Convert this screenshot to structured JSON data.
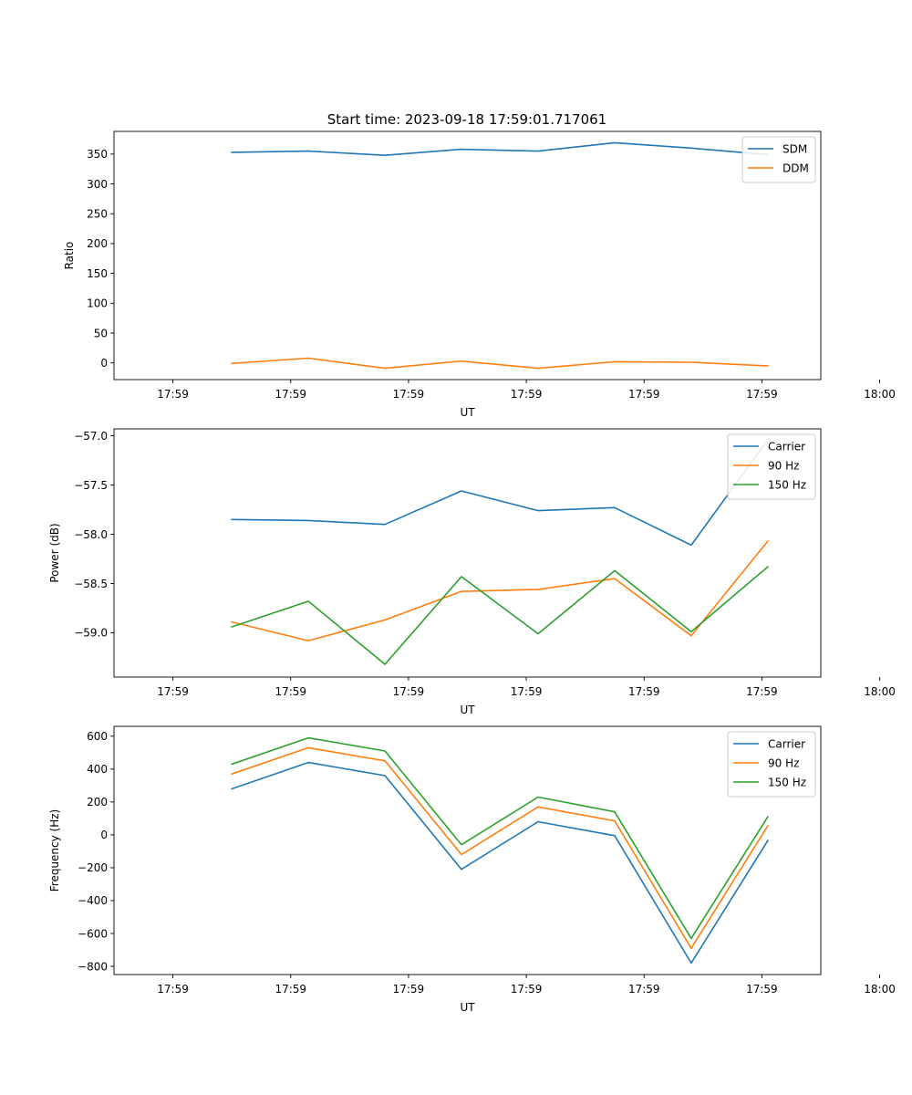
{
  "title": "Start time: 2023-09-18 17:59:01.717061",
  "colors": {
    "blue": "#1f77b4",
    "orange": "#ff7f0e",
    "green": "#2ca02c"
  },
  "chart_data": [
    {
      "type": "line",
      "xlabel": "UT",
      "ylabel": "Ratio",
      "x": [
        0.5,
        1.15,
        1.8,
        2.45,
        3.1,
        3.75,
        4.4,
        5.05
      ],
      "xlim": [
        -0.5,
        5.5
      ],
      "x_ticks": [
        0,
        1,
        2,
        3,
        4,
        5,
        6
      ],
      "x_tick_labels": [
        "17:59",
        "17:59",
        "17:59",
        "17:59",
        "17:59",
        "17:59",
        "18:00"
      ],
      "ylim": [
        -28,
        388
      ],
      "y_ticks": [
        0,
        50,
        100,
        150,
        200,
        250,
        300,
        350
      ],
      "y_tick_labels": [
        "0",
        "50",
        "100",
        "150",
        "200",
        "250",
        "300",
        "350"
      ],
      "legend_position": "top-right",
      "series": [
        {
          "name": "SDM",
          "color": "#1f77b4",
          "values": [
            353,
            355,
            348,
            358,
            355,
            369,
            360,
            349
          ]
        },
        {
          "name": "DDM",
          "color": "#ff7f0e",
          "values": [
            -1,
            8,
            -9,
            3,
            -9,
            2,
            1,
            -5
          ]
        }
      ]
    },
    {
      "type": "line",
      "xlabel": "UT",
      "ylabel": "Power (dB)",
      "x": [
        0.5,
        1.15,
        1.8,
        2.45,
        3.1,
        3.75,
        4.4,
        5.05
      ],
      "xlim": [
        -0.5,
        5.5
      ],
      "x_ticks": [
        0,
        1,
        2,
        3,
        4,
        5,
        6
      ],
      "x_tick_labels": [
        "17:59",
        "17:59",
        "17:59",
        "17:59",
        "17:59",
        "17:59",
        "18:00"
      ],
      "ylim": [
        -59.45,
        -56.93
      ],
      "y_ticks": [
        -59.0,
        -58.5,
        -58.0,
        -57.5,
        -57.0
      ],
      "y_tick_labels": [
        "−59.0",
        "−58.5",
        "−58.0",
        "−57.5",
        "−57.0"
      ],
      "legend_position": "top-right",
      "series": [
        {
          "name": "Carrier",
          "color": "#1f77b4",
          "values": [
            -57.85,
            -57.86,
            -57.9,
            -57.56,
            -57.76,
            -57.73,
            -58.11,
            -57.04
          ]
        },
        {
          "name": "90 Hz",
          "color": "#ff7f0e",
          "values": [
            -58.89,
            -59.08,
            -58.87,
            -58.58,
            -58.56,
            -58.45,
            -59.03,
            -58.07
          ]
        },
        {
          "name": "150 Hz",
          "color": "#2ca02c",
          "values": [
            -58.94,
            -58.68,
            -59.32,
            -58.43,
            -59.01,
            -58.37,
            -58.99,
            -58.33
          ]
        }
      ]
    },
    {
      "type": "line",
      "xlabel": "UT",
      "ylabel": "Frequency (Hz)",
      "x": [
        0.5,
        1.15,
        1.8,
        2.45,
        3.1,
        3.75,
        4.4,
        5.05
      ],
      "xlim": [
        -0.5,
        5.5
      ],
      "x_ticks": [
        0,
        1,
        2,
        3,
        4,
        5,
        6
      ],
      "x_tick_labels": [
        "17:59",
        "17:59",
        "17:59",
        "17:59",
        "17:59",
        "17:59",
        "18:00"
      ],
      "ylim": [
        -850,
        660
      ],
      "y_ticks": [
        -800,
        -600,
        -400,
        -200,
        0,
        200,
        400,
        600
      ],
      "y_tick_labels": [
        "−800",
        "−600",
        "−400",
        "−200",
        "0",
        "200",
        "400",
        "600"
      ],
      "legend_position": "top-right",
      "series": [
        {
          "name": "Carrier",
          "color": "#1f77b4",
          "values": [
            280,
            440,
            360,
            -210,
            80,
            -5,
            -780,
            -35
          ]
        },
        {
          "name": "90 Hz",
          "color": "#ff7f0e",
          "values": [
            370,
            530,
            450,
            -120,
            170,
            85,
            -690,
            55
          ]
        },
        {
          "name": "150 Hz",
          "color": "#2ca02c",
          "values": [
            430,
            590,
            510,
            -60,
            230,
            140,
            -630,
            110
          ]
        }
      ]
    }
  ]
}
